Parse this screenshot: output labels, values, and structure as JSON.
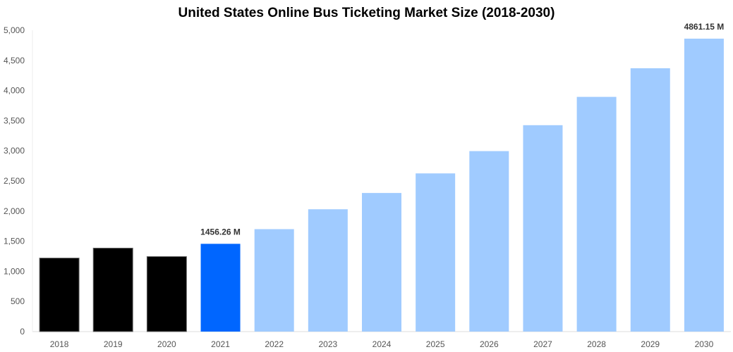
{
  "chart_data": {
    "type": "bar",
    "title": "United States Online Bus Ticketing Market Size (2018-2030)",
    "xlabel": "",
    "ylabel": "",
    "ylim": [
      0,
      5000
    ],
    "yticks": [
      "0",
      "500",
      "1,000",
      "1,500",
      "2,000",
      "2,500",
      "3,000",
      "3,500",
      "4,000",
      "4,500",
      "5,000"
    ],
    "grid": false,
    "categories": [
      "2018",
      "2019",
      "2020",
      "2021",
      "2022",
      "2023",
      "2024",
      "2025",
      "2026",
      "2027",
      "2028",
      "2029",
      "2030"
    ],
    "values": [
      1220,
      1385,
      1245,
      1456.26,
      1700,
      2030,
      2300,
      2625,
      2995,
      3425,
      3895,
      4370,
      4861.15
    ],
    "colors": [
      "#000000",
      "#000000",
      "#000000",
      "#0066ff",
      "#a0cbff",
      "#a0cbff",
      "#a0cbff",
      "#a0cbff",
      "#a0cbff",
      "#a0cbff",
      "#a0cbff",
      "#a0cbff",
      "#a0cbff"
    ],
    "data_labels": {
      "2021": "1456.26 M",
      "2030": "4861.15 M"
    }
  }
}
